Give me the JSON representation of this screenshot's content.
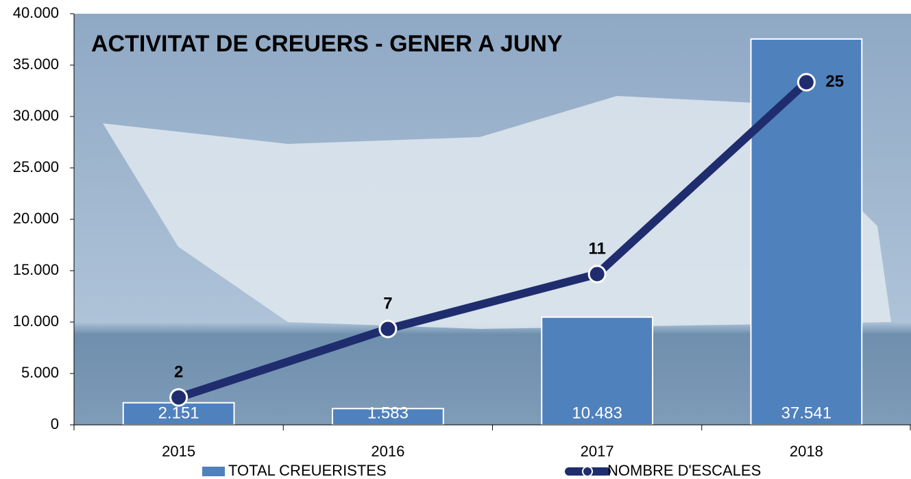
{
  "chart_data": {
    "type": "bar",
    "title": "ACTIVITAT DE CREUERS - GENER A JUNY",
    "categories": [
      "2015",
      "2016",
      "2017",
      "2018"
    ],
    "series": [
      {
        "name": "TOTAL CREUERISTES",
        "type": "bar",
        "color": "#4f81bd",
        "values": [
          2151,
          1583,
          10483,
          37541
        ],
        "value_labels": [
          "2.151",
          "1.583",
          "10.483",
          "37.541"
        ]
      },
      {
        "name": "NOMBRE D'ESCALES",
        "type": "line",
        "axis": "y2",
        "color": "#1f2d6e",
        "values": [
          2,
          7,
          11,
          25
        ]
      }
    ],
    "ylim": [
      0,
      40000
    ],
    "yticks": [
      0,
      {
        "value": 5000,
        "label": "5.000"
      },
      {
        "value": 10000,
        "label": "10.000"
      },
      {
        "value": 15000,
        "label": "15.000"
      },
      {
        "value": 20000,
        "label": "20.000"
      },
      {
        "value": 25000,
        "label": "25.000"
      },
      {
        "value": 30000,
        "label": "30.000"
      },
      {
        "value": 35000,
        "label": "35.000"
      },
      {
        "value": 40000,
        "label": "40.000"
      }
    ],
    "y2lim": [
      0,
      30
    ]
  }
}
